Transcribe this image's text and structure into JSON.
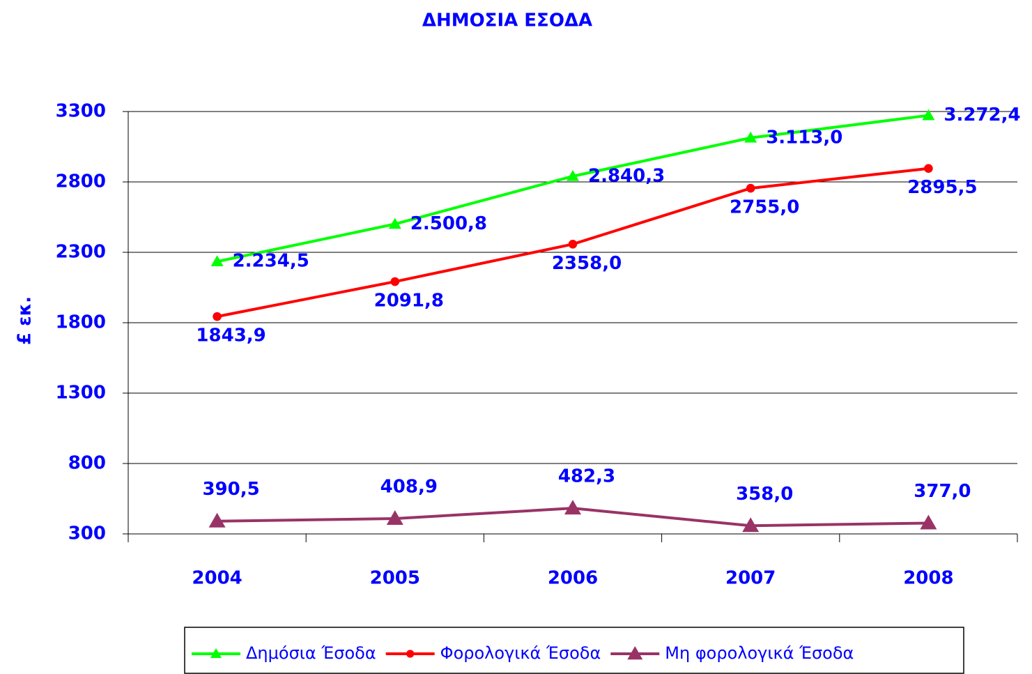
{
  "chart_data": {
    "type": "line",
    "title": "ΔΗΜΟΣΙΑ ΕΣΟΔΑ",
    "y_label": "£ εκ.",
    "categories": [
      "2004",
      "2005",
      "2006",
      "2007",
      "2008"
    ],
    "series": [
      {
        "name": "Δημόσια Έσοδα",
        "color": "#00ff00",
        "marker": "triangle",
        "values": [
          2234.5,
          2500.8,
          2840.3,
          3113.0,
          3272.4
        ],
        "value_labels": [
          "2.234,5",
          "2.500,8",
          "2.840,3",
          "3.113,0",
          "3.272,4"
        ]
      },
      {
        "name": "Φορολογικά Έσοδα",
        "color": "#ff0000",
        "marker": "circle",
        "values": [
          1843.9,
          2091.8,
          2358.0,
          2755.0,
          2895.5
        ],
        "value_labels": [
          "1843,9",
          "2091,8",
          "2358,0",
          "2755,0",
          "2895,5"
        ]
      },
      {
        "name": "Μη φορολογικά Έσοδα",
        "color": "#993366",
        "marker": "triangle",
        "values": [
          390.5,
          408.9,
          482.3,
          358.0,
          377.0
        ],
        "value_labels": [
          "390,5",
          "408,9",
          "482,3",
          "358,0",
          "377,0"
        ]
      }
    ],
    "ylim": [
      300,
      3300
    ],
    "yticks": [
      300,
      800,
      1300,
      1800,
      2300,
      2800,
      3300
    ],
    "grid": true,
    "legend": "bottom"
  }
}
